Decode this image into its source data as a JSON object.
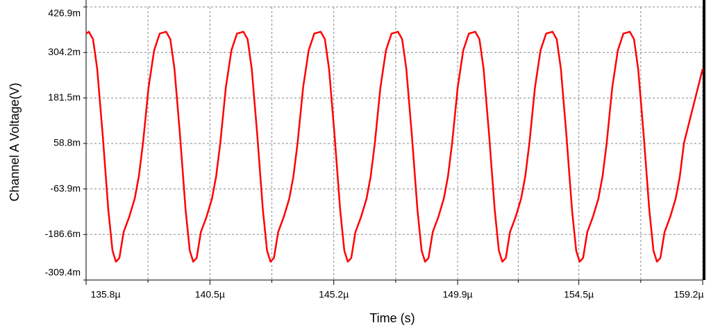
{
  "chart_data": {
    "type": "line",
    "xlabel": "Time (s)",
    "ylabel": "Channel  A Voltage(V)",
    "xlim": [
      0.0001358,
      0.0001592
    ],
    "ylim": [
      -0.3094,
      0.4269
    ],
    "xticks": [
      {
        "value": 0.0001358,
        "label": "135.8µ"
      },
      {
        "value": 0.0001405,
        "label": "140.5µ"
      },
      {
        "value": 0.0001452,
        "label": "145.2µ"
      },
      {
        "value": 0.0001499,
        "label": "149.9µ"
      },
      {
        "value": 0.0001545,
        "label": "154.5µ"
      },
      {
        "value": 0.0001592,
        "label": "159.2µ"
      }
    ],
    "xminorticks": [
      0.00013815,
      0.00014285,
      0.00014755,
      0.0001522,
      0.00015685
    ],
    "yticks": [
      {
        "value": 0.4269,
        "label": "426.9m"
      },
      {
        "value": 0.3042,
        "label": "304.2m"
      },
      {
        "value": 0.1815,
        "label": "181.5m"
      },
      {
        "value": 0.0588,
        "label": "58.8m"
      },
      {
        "value": -0.0639,
        "label": "-63.9m"
      },
      {
        "value": -0.1866,
        "label": "-186.6m"
      },
      {
        "value": -0.3094,
        "label": "-309.4m"
      }
    ],
    "grid": true,
    "series": [
      {
        "name": "Channel  A",
        "color": "#ff0000",
        "x": [
          0.0001358,
          0.000135905,
          0.000136063,
          0.000136221,
          0.000136432,
          0.000136643,
          0.000136801,
          0.000136933,
          0.000137064,
          0.000137223,
          0.000137433,
          0.000137644,
          0.000137802,
          0.00013796,
          0.000138171,
          0.000138382,
          0.000138593,
          0.000138838,
          0.000138996,
          0.000139154,
          0.000139365,
          0.000139576,
          0.000139734,
          0.000139866,
          0.000139997,
          0.000140156,
          0.000140366,
          0.000140577,
          0.000140735,
          0.000140893,
          0.000141104,
          0.000141315,
          0.000141526,
          0.000141771,
          0.000141929,
          0.000142087,
          0.000142298,
          0.000142509,
          0.000142667,
          0.000142799,
          0.00014293,
          0.000143089,
          0.000143299,
          0.00014351,
          0.000143668,
          0.000143826,
          0.000144037,
          0.000144248,
          0.000144459,
          0.000144704,
          0.000144862,
          0.00014502,
          0.000145231,
          0.000145442,
          0.0001456,
          0.000145732,
          0.000145863,
          0.000146022,
          0.000146232,
          0.000146443,
          0.000146601,
          0.000146759,
          0.00014697,
          0.000147181,
          0.000147392,
          0.000147637,
          0.000147795,
          0.000147953,
          0.000148164,
          0.000148375,
          0.000148533,
          0.000148665,
          0.000148796,
          0.000148955,
          0.000149165,
          0.000149376,
          0.000149534,
          0.000149692,
          0.000149903,
          0.000150114,
          0.000150325,
          0.00015057,
          0.000150728,
          0.000150886,
          0.000151097,
          0.000151308,
          0.000151466,
          0.000151598,
          0.000151729,
          0.000151888,
          0.000152098,
          0.000152309,
          0.000152467,
          0.000152625,
          0.000152836,
          0.000153047,
          0.000153258,
          0.000153503,
          0.000153661,
          0.000153819,
          0.00015403,
          0.000154241,
          0.000154399,
          0.000154531,
          0.000154662,
          0.000154821,
          0.000155031,
          0.000155242,
          0.0001554,
          0.000155558,
          0.000155769,
          0.00015598,
          0.000156191,
          0.000156436,
          0.000156594,
          0.000156752,
          0.000156963,
          0.000157174,
          0.000157332,
          0.000157464,
          0.000157595,
          0.000157754,
          0.000157964,
          0.000158175,
          0.000158333,
          0.000158491,
          0.0001592
        ],
        "values": [
          0.355,
          0.36,
          0.34,
          0.26,
          0.08,
          -0.12,
          -0.23,
          -0.26,
          -0.25,
          -0.18,
          -0.14,
          -0.09,
          -0.03,
          0.06,
          0.21,
          0.31,
          0.355,
          0.36,
          0.34,
          0.26,
          0.08,
          -0.12,
          -0.23,
          -0.26,
          -0.25,
          -0.18,
          -0.14,
          -0.09,
          -0.03,
          0.06,
          0.21,
          0.31,
          0.355,
          0.36,
          0.34,
          0.26,
          0.08,
          -0.12,
          -0.23,
          -0.26,
          -0.25,
          -0.18,
          -0.14,
          -0.09,
          -0.03,
          0.06,
          0.21,
          0.31,
          0.355,
          0.36,
          0.34,
          0.26,
          0.08,
          -0.12,
          -0.23,
          -0.26,
          -0.25,
          -0.18,
          -0.14,
          -0.09,
          -0.03,
          0.06,
          0.21,
          0.31,
          0.355,
          0.36,
          0.34,
          0.26,
          0.08,
          -0.12,
          -0.23,
          -0.26,
          -0.25,
          -0.18,
          -0.14,
          -0.09,
          -0.03,
          0.06,
          0.21,
          0.31,
          0.355,
          0.36,
          0.34,
          0.26,
          0.08,
          -0.12,
          -0.23,
          -0.26,
          -0.25,
          -0.18,
          -0.14,
          -0.09,
          -0.03,
          0.06,
          0.21,
          0.31,
          0.355,
          0.36,
          0.34,
          0.26,
          0.08,
          -0.12,
          -0.23,
          -0.26,
          -0.25,
          -0.18,
          -0.14,
          -0.09,
          -0.03,
          0.06,
          0.21,
          0.31,
          0.355,
          0.36,
          0.34,
          0.26,
          0.08,
          -0.12,
          -0.23,
          -0.26,
          -0.25,
          -0.18,
          -0.14,
          -0.09,
          -0.03,
          0.06,
          0.26
        ]
      }
    ]
  }
}
